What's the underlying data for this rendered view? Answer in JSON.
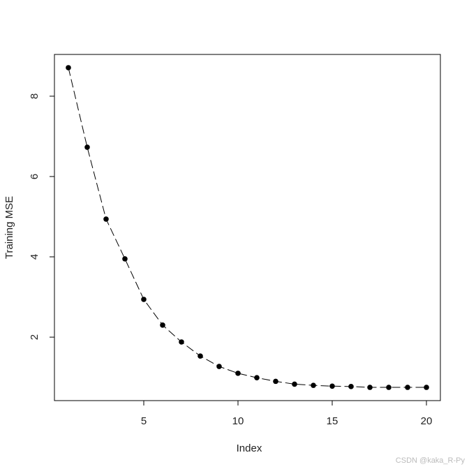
{
  "chart_data": {
    "type": "line",
    "x": [
      1,
      2,
      3,
      4,
      5,
      6,
      7,
      8,
      9,
      10,
      11,
      12,
      13,
      14,
      15,
      16,
      17,
      18,
      19,
      20
    ],
    "values": [
      8.71,
      6.73,
      4.94,
      3.95,
      2.94,
      2.3,
      1.88,
      1.53,
      1.27,
      1.1,
      0.99,
      0.9,
      0.83,
      0.8,
      0.78,
      0.77,
      0.75,
      0.75,
      0.75,
      0.75
    ],
    "color": "#000000",
    "xlabel": "Index",
    "ylabel": "Training MSE",
    "xlim": [
      0.26,
      20.74
    ],
    "xticks": [
      5,
      10,
      15,
      20
    ],
    "ylim": [
      0.42,
      9.04
    ],
    "yticks": [
      2,
      4,
      6,
      8
    ],
    "watermark": "CSDN @kaka_R-Py"
  }
}
